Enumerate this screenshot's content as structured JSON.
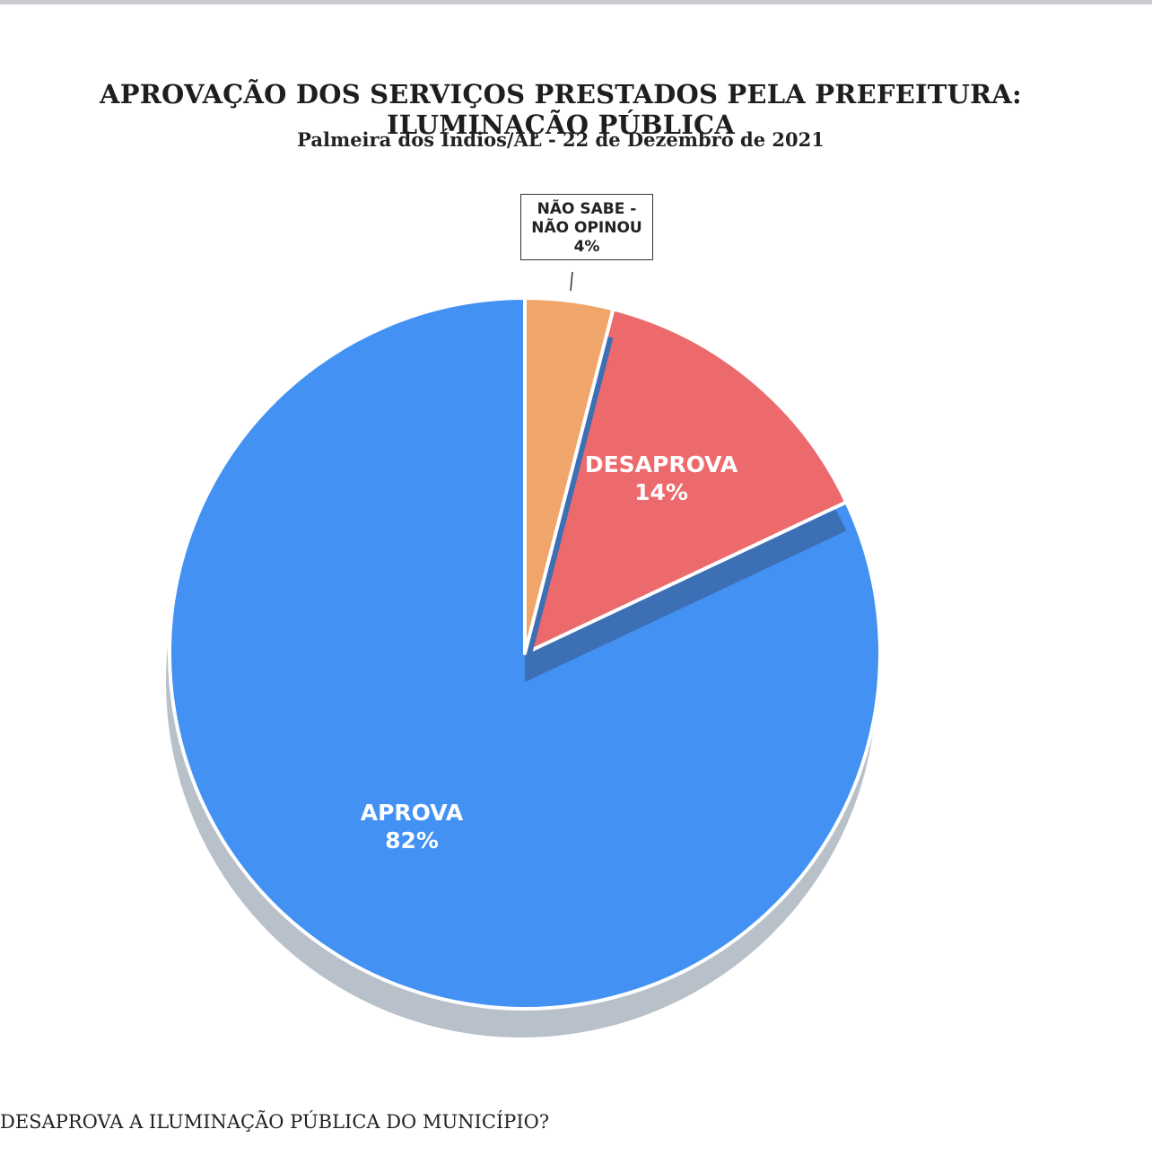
{
  "header": {
    "title": "APROVAÇÃO DOS SERVIÇOS PRESTADOS PELA PREFEITURA: ILUMINAÇÃO PÚBLICA",
    "subtitle": "Palmeira dos Índios/AL - 22 de Dezembro de 2021"
  },
  "footer": {
    "question": "DESAPROVA A ILUMINAÇÃO PÚBLICA DO MUNICÍPIO?"
  },
  "chart_data": {
    "type": "pie",
    "title": "APROVAÇÃO DOS SERVIÇOS PRESTADOS PELA PREFEITURA: ILUMINAÇÃO PÚBLICA",
    "subtitle": "Palmeira dos Índios/AL - 22 de Dezembro de 2021",
    "start": "12 o'clock, clockwise",
    "slices": [
      {
        "label": "NÃO SABE - NÃO OPINOU",
        "value": 4,
        "display": "4%",
        "color": "#F0A66A",
        "label_lines": [
          "NÃO SABE  -",
          "NÃO OPINOU",
          "4%"
        ]
      },
      {
        "label": "DESAPROVA",
        "value": 14,
        "display": "14%",
        "color": "#EC696C",
        "label_lines": [
          "DESAPROVA",
          "14%"
        ]
      },
      {
        "label": "APROVA",
        "value": 82,
        "display": "82%",
        "color": "#4291F3",
        "label_lines": [
          "APROVA",
          "82%"
        ]
      }
    ]
  }
}
